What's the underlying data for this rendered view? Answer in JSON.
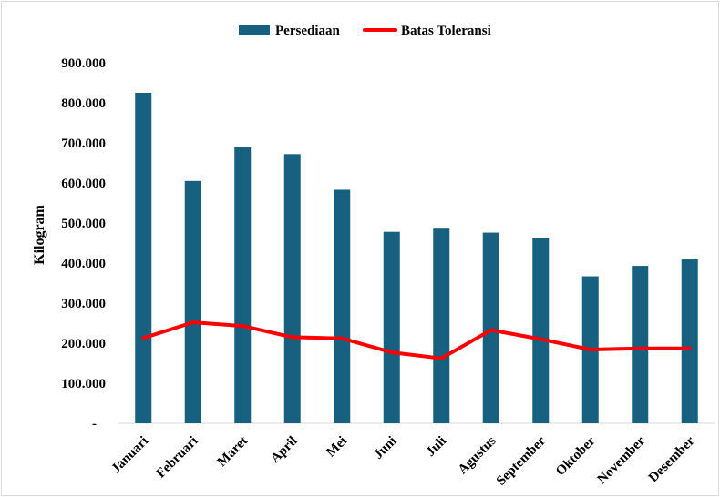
{
  "chart_data": {
    "type": "bar+line",
    "title": "",
    "xlabel": "",
    "ylabel": "Kilogram",
    "ylim": [
      0,
      900000
    ],
    "y_tick_labels": [
      "-",
      "100.000",
      "200.000",
      "300.000",
      "400.000",
      "500.000",
      "600.000",
      "700.000",
      "800.000",
      "900.000"
    ],
    "categories": [
      "Januari",
      "Februari",
      "Maret",
      "April",
      "Mei",
      "Juni",
      "Juli",
      "Agustus",
      "September",
      "Oktober",
      "November",
      "Desember"
    ],
    "series": [
      {
        "name": "Persediaan",
        "kind": "bar",
        "color": "#17607f",
        "values": [
          825000,
          605000,
          690000,
          672000,
          583000,
          478000,
          486000,
          476000,
          462000,
          367000,
          393000,
          409000
        ]
      },
      {
        "name": "Batas Toleransi",
        "kind": "line",
        "color": "#ff0000",
        "values": [
          213000,
          252000,
          243000,
          215000,
          212000,
          177000,
          162000,
          233000,
          210000,
          184000,
          187000,
          187000
        ]
      }
    ],
    "grid": false,
    "legend_position": "top-center"
  }
}
